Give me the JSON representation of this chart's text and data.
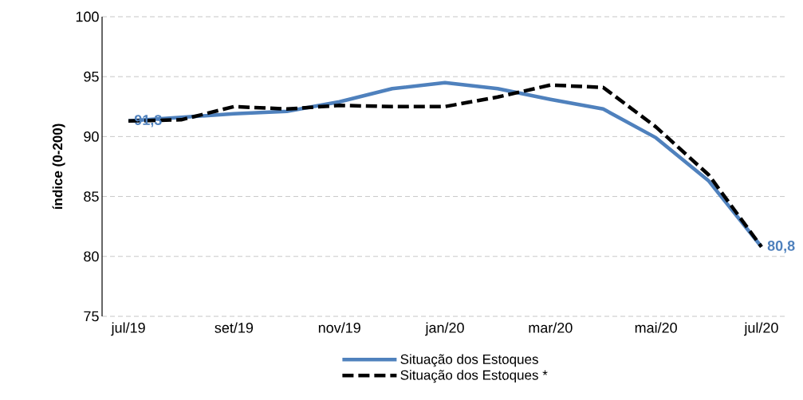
{
  "chart_data": {
    "type": "line",
    "ylabel": "índice (0-200)",
    "categories": [
      "jul/19",
      null,
      "set/19",
      null,
      "nov/19",
      null,
      "jan/20",
      null,
      "mar/20",
      null,
      "mai/20",
      null,
      "jul/20"
    ],
    "ylim": [
      75,
      100
    ],
    "yticks": [
      75,
      80,
      85,
      90,
      95,
      100
    ],
    "grid": "y",
    "legend": "bottom",
    "series": [
      {
        "name": "Situação dos Estoques",
        "color": "#4f81bd",
        "line_style": "solid",
        "values": [
          91.3,
          91.6,
          91.9,
          92.1,
          92.9,
          94.0,
          94.5,
          94.0,
          93.1,
          92.3,
          89.9,
          86.3,
          80.8
        ],
        "value_labels": [
          "91,3",
          null,
          null,
          null,
          null,
          null,
          null,
          null,
          null,
          null,
          null,
          null,
          "80,8"
        ]
      },
      {
        "name": "Situação dos Estoques *",
        "color": "#000000",
        "line_style": "dashed",
        "values": [
          91.3,
          91.4,
          92.5,
          92.3,
          92.6,
          92.5,
          92.5,
          93.3,
          94.3,
          94.1,
          90.8,
          86.8,
          80.8
        ]
      }
    ]
  }
}
